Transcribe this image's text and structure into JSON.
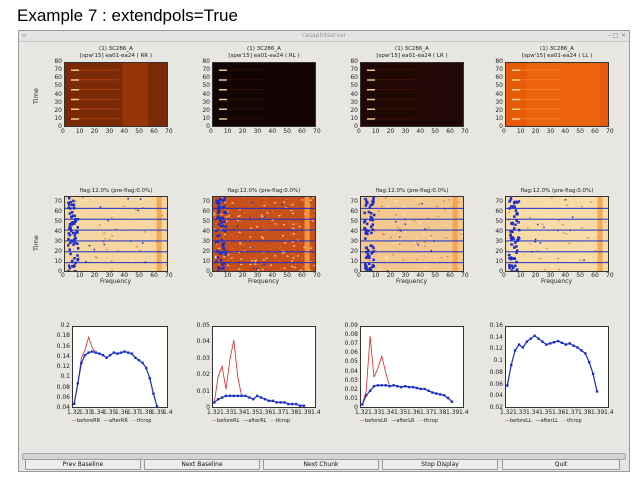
{
  "caption": "Example 7 :  extendpols=True",
  "window": {
    "title": "casaplotserver"
  },
  "top_panels": [
    {
      "title1": "(1) 3C286_A",
      "title2": "[spw'15] ea01-ea24  ( RR )",
      "style": "dim"
    },
    {
      "title1": "(1) 3C286_A",
      "title2": "[spw'15] ea01-ea24  ( RL )",
      "style": "dark"
    },
    {
      "title1": "(1) 3C286_A",
      "title2": "[spw'15] ea01-ea24  ( LR )",
      "style": "dark2"
    },
    {
      "title1": "(1) 3C286_A",
      "title2": "[spw'15] ea01-ea24  ( LL )",
      "style": "bright"
    }
  ],
  "mid_panels": [
    {
      "title": "flag:12.0% (pre-flag:0.0%)",
      "style": "pale"
    },
    {
      "title": "flag:12.0% (pre-flag:0.0%)",
      "style": "dense"
    },
    {
      "title": "flag:12.0% (pre-flag:0.0%)",
      "style": "pale2"
    },
    {
      "title": "flag:12.0% (pre-flag:0.0%)",
      "style": "pale3"
    }
  ],
  "axes": {
    "ylabel": "Time",
    "xlabel": "Frequency",
    "image_x_ticks": [
      "0",
      "10",
      "20",
      "30",
      "40",
      "50",
      "60",
      "70"
    ],
    "image_y_ticks": [
      "0",
      "10",
      "20",
      "30",
      "40",
      "50",
      "60",
      "70",
      "80"
    ],
    "spec_x_ticks": [
      "1.32",
      "1.33",
      "1.34",
      "1.35",
      "1.36",
      "1.37",
      "1.38",
      "1.39",
      "1.4"
    ]
  },
  "chart_data": [
    {
      "type": "line",
      "panel": "RR spectrum",
      "x": [
        1.321,
        1.324,
        1.327,
        1.33,
        1.333,
        1.336,
        1.339,
        1.342,
        1.345,
        1.348,
        1.351,
        1.354,
        1.357,
        1.36,
        1.363,
        1.366,
        1.369,
        1.372,
        1.375,
        1.378,
        1.381,
        1.384,
        1.387,
        1.39
      ],
      "series": [
        {
          "name": "beforeRR",
          "color": "#dd2222",
          "values": [
            0.05,
            0.09,
            0.14,
            0.155,
            0.18,
            0.16,
            0.15,
            0.148,
            0.145,
            0.14,
            0.145,
            0.15,
            0.148,
            0.15,
            0.152,
            0.15,
            0.148,
            0.14,
            0.135,
            0.13,
            0.12,
            0.1,
            0.07,
            0.045
          ]
        },
        {
          "name": "afterRR",
          "color": "#1a2ecc",
          "values": [
            0.05,
            0.09,
            0.13,
            0.145,
            0.15,
            0.152,
            0.15,
            0.148,
            0.145,
            0.14,
            0.145,
            0.15,
            0.148,
            0.15,
            0.152,
            0.15,
            0.148,
            0.14,
            0.135,
            0.13,
            0.12,
            0.1,
            0.07,
            0.045
          ]
        }
      ],
      "yticks": [
        "0.04",
        "0.06",
        "0.08",
        "0.1",
        "0.12",
        "0.14",
        "0.16",
        "0.18",
        "0.2"
      ],
      "ylim": [
        0.04,
        0.2
      ],
      "legend": [
        "beforeRR",
        "afterRR",
        "tfcrop"
      ]
    },
    {
      "type": "line",
      "panel": "RL spectrum",
      "x": [
        1.321,
        1.324,
        1.327,
        1.33,
        1.333,
        1.336,
        1.339,
        1.342,
        1.345,
        1.348,
        1.351,
        1.354,
        1.357,
        1.36,
        1.363,
        1.366,
        1.369,
        1.372,
        1.375,
        1.378,
        1.381,
        1.384,
        1.387,
        1.39
      ],
      "series": [
        {
          "name": "beforeRL",
          "color": "#dd2222",
          "values": [
            0.004,
            0.02,
            0.026,
            0.012,
            0.03,
            0.042,
            0.02,
            0.008,
            0.008,
            0.007,
            0.006,
            0.008,
            0.007,
            0.006,
            0.005,
            0.005,
            0.004,
            0.004,
            0.004,
            0.003,
            0.003,
            0.003,
            0.002,
            0.002
          ]
        },
        {
          "name": "afterRL",
          "color": "#1a2ecc",
          "values": [
            0.004,
            0.006,
            0.007,
            0.008,
            0.008,
            0.008,
            0.008,
            0.008,
            0.008,
            0.007,
            0.006,
            0.008,
            0.007,
            0.006,
            0.005,
            0.005,
            0.004,
            0.004,
            0.004,
            0.003,
            0.003,
            0.003,
            0.002,
            0.002
          ]
        }
      ],
      "yticks": [
        "0",
        "0.01",
        "0.02",
        "0.03",
        "0.04",
        "0.05"
      ],
      "ylim": [
        0,
        0.05
      ],
      "legend": [
        "beforeRL",
        "afterRL",
        "tfcrop"
      ]
    },
    {
      "type": "line",
      "panel": "LR spectrum",
      "x": [
        1.321,
        1.324,
        1.327,
        1.33,
        1.333,
        1.336,
        1.339,
        1.342,
        1.345,
        1.348,
        1.351,
        1.354,
        1.357,
        1.36,
        1.363,
        1.366,
        1.369,
        1.372,
        1.375,
        1.378,
        1.381,
        1.384,
        1.387,
        1.39
      ],
      "series": [
        {
          "name": "beforeLR",
          "color": "#dd2222",
          "values": [
            0.005,
            0.02,
            0.08,
            0.035,
            0.045,
            0.058,
            0.04,
            0.025,
            0.026,
            0.025,
            0.024,
            0.025,
            0.024,
            0.024,
            0.023,
            0.022,
            0.022,
            0.02,
            0.018,
            0.017,
            0.016,
            0.015,
            0.012,
            0.008
          ]
        },
        {
          "name": "afterLR",
          "color": "#1a2ecc",
          "values": [
            0.005,
            0.015,
            0.02,
            0.025,
            0.026,
            0.026,
            0.026,
            0.025,
            0.026,
            0.025,
            0.024,
            0.025,
            0.024,
            0.024,
            0.023,
            0.022,
            0.022,
            0.02,
            0.018,
            0.017,
            0.016,
            0.015,
            0.012,
            0.008
          ]
        }
      ],
      "yticks": [
        "0",
        "0.01",
        "0.02",
        "0.03",
        "0.04",
        "0.05",
        "0.06",
        "0.07",
        "0.08",
        "0.09"
      ],
      "ylim": [
        0,
        0.09
      ],
      "legend": [
        "beforeLR",
        "afterLR",
        "tfcrop"
      ]
    },
    {
      "type": "line",
      "panel": "LL spectrum",
      "x": [
        1.321,
        1.324,
        1.327,
        1.33,
        1.333,
        1.336,
        1.339,
        1.342,
        1.345,
        1.348,
        1.351,
        1.354,
        1.357,
        1.36,
        1.363,
        1.366,
        1.369,
        1.372,
        1.375,
        1.378,
        1.381,
        1.384,
        1.387,
        1.39
      ],
      "series": [
        {
          "name": "beforeLL",
          "color": "#dd2222",
          "values": [
            0.06,
            0.095,
            0.12,
            0.13,
            0.125,
            0.135,
            0.14,
            0.145,
            0.14,
            0.135,
            0.13,
            0.132,
            0.134,
            0.136,
            0.133,
            0.13,
            0.132,
            0.128,
            0.125,
            0.12,
            0.115,
            0.1,
            0.08,
            0.05
          ]
        },
        {
          "name": "afterLL",
          "color": "#1a2ecc",
          "values": [
            0.06,
            0.095,
            0.12,
            0.13,
            0.125,
            0.135,
            0.14,
            0.145,
            0.14,
            0.135,
            0.13,
            0.132,
            0.134,
            0.136,
            0.133,
            0.13,
            0.132,
            0.128,
            0.125,
            0.12,
            0.115,
            0.1,
            0.08,
            0.05
          ]
        }
      ],
      "yticks": [
        "0.02",
        "0.04",
        "0.06",
        "0.08",
        "0.1",
        "0.12",
        "0.14",
        "0.16"
      ],
      "ylim": [
        0.02,
        0.16
      ],
      "legend": [
        "beforeLL",
        "afterLL",
        "tfcrop"
      ]
    }
  ],
  "buttons": {
    "prev": "Prev Baseline",
    "next": "Next Baseline",
    "chunk": "Next Chunk",
    "stop": "Stop Display",
    "quit": "Quit"
  }
}
